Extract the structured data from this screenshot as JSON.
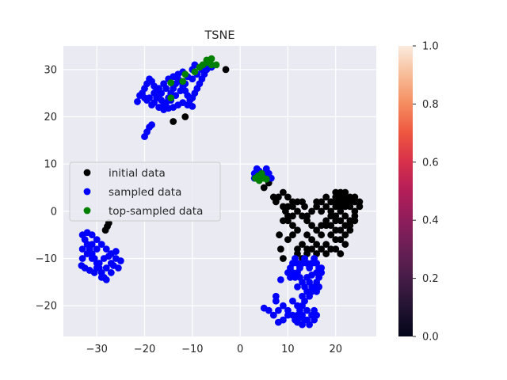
{
  "chart_data": {
    "type": "scatter",
    "title": "TSNE",
    "xlabel": "",
    "ylabel": "",
    "xlim": [
      -37,
      28.5
    ],
    "ylim": [
      -26.5,
      35
    ],
    "xticks": [
      -30,
      -20,
      -10,
      0,
      10,
      20
    ],
    "yticks": [
      -20,
      -10,
      0,
      10,
      20,
      30
    ],
    "xtick_labels": [
      "−30",
      "−20",
      "−10",
      "0",
      "10",
      "20"
    ],
    "ytick_labels": [
      "−20",
      "−10",
      "0",
      "10",
      "20",
      "30"
    ],
    "grid": true,
    "legend_position": "center-left",
    "series": [
      {
        "name": "initial data",
        "color": "#000000",
        "points": [
          [
            -3,
            30
          ],
          [
            -14,
            19
          ],
          [
            -11.5,
            20
          ],
          [
            -27.5,
            -2.5
          ],
          [
            -27.8,
            -3.2
          ],
          [
            -28.2,
            -4
          ],
          [
            5,
            5
          ],
          [
            6,
            6
          ],
          [
            7,
            3
          ],
          [
            7.5,
            2
          ],
          [
            9,
            1
          ],
          [
            9.5,
            0
          ],
          [
            10,
            -1
          ],
          [
            9,
            -2
          ],
          [
            8.2,
            -5
          ],
          [
            8.5,
            -8
          ],
          [
            9,
            -10
          ],
          [
            10,
            -2
          ],
          [
            11,
            -3
          ],
          [
            12,
            -4
          ],
          [
            13,
            -1
          ],
          [
            13.5,
            1
          ],
          [
            12,
            2
          ],
          [
            11,
            1
          ],
          [
            14,
            -2
          ],
          [
            15,
            0
          ],
          [
            16,
            1
          ],
          [
            17,
            0
          ],
          [
            18,
            -2
          ],
          [
            19,
            -3
          ],
          [
            20,
            -1
          ],
          [
            21,
            0
          ],
          [
            22,
            1
          ],
          [
            23,
            2
          ],
          [
            24,
            3
          ],
          [
            25,
            1
          ],
          [
            24,
            -1
          ],
          [
            23,
            -3
          ],
          [
            22,
            -5
          ],
          [
            21,
            -4
          ],
          [
            20,
            -6
          ],
          [
            19,
            -5
          ],
          [
            18,
            -7
          ],
          [
            21,
            -9
          ],
          [
            17,
            -5
          ],
          [
            16,
            -7
          ],
          [
            15,
            -6
          ],
          [
            14,
            -5
          ],
          [
            13,
            -7
          ],
          [
            12,
            -9
          ],
          [
            12,
            -8
          ],
          [
            10,
            -6
          ],
          [
            11,
            -5
          ],
          [
            19,
            2
          ],
          [
            20,
            3
          ],
          [
            21,
            4
          ],
          [
            22,
            3
          ],
          [
            23,
            1
          ],
          [
            24,
            0
          ],
          [
            20,
            2
          ],
          [
            21,
            2
          ],
          [
            22,
            2
          ],
          [
            19,
            0
          ],
          [
            18,
            1
          ],
          [
            20,
            -2
          ],
          [
            21,
            -2
          ],
          [
            22,
            -1
          ],
          [
            23,
            -2
          ],
          [
            24,
            -2
          ],
          [
            22,
            -3
          ],
          [
            21,
            -6
          ],
          [
            20,
            -4
          ],
          [
            23,
            -4
          ],
          [
            22,
            -7
          ],
          [
            16,
            -9
          ],
          [
            17,
            -8
          ],
          [
            18,
            -3
          ],
          [
            15,
            -3
          ],
          [
            14,
            -1
          ],
          [
            13,
            2
          ],
          [
            16,
            2
          ],
          [
            17,
            2
          ],
          [
            18,
            3
          ],
          [
            12,
            0
          ],
          [
            11,
            -1
          ],
          [
            10,
            1
          ],
          [
            8,
            3
          ],
          [
            9,
            4
          ],
          [
            10,
            3
          ],
          [
            11,
            2
          ],
          [
            15,
            -8
          ],
          [
            14,
            -8
          ],
          [
            16,
            -4
          ],
          [
            17,
            -3
          ],
          [
            19,
            -1
          ],
          [
            20,
            1
          ],
          [
            21,
            1
          ],
          [
            25,
            2
          ],
          [
            22,
            4
          ],
          [
            23,
            3
          ],
          [
            24,
            2
          ],
          [
            20,
            4
          ],
          [
            21,
            3
          ],
          [
            19,
            -8
          ],
          [
            20,
            -8
          ],
          [
            18,
            -9
          ],
          [
            13,
            -10
          ],
          [
            14,
            -9
          ]
        ]
      },
      {
        "name": "sampled data",
        "color": "#0000ff",
        "points": [
          [
            -20,
            15.8
          ],
          [
            -19.5,
            16.8
          ],
          [
            -19,
            17.8
          ],
          [
            -18.5,
            18.3
          ],
          [
            -21.5,
            23.2
          ],
          [
            -21,
            24.5
          ],
          [
            -20.5,
            25
          ],
          [
            -20,
            26
          ],
          [
            -19.5,
            27
          ],
          [
            -19,
            28
          ],
          [
            -18.5,
            27.5
          ],
          [
            -18,
            26.5
          ],
          [
            -17.5,
            25.5
          ],
          [
            -17,
            24.5
          ],
          [
            -16.5,
            23.5
          ],
          [
            -16,
            22.5
          ],
          [
            -15.5,
            23
          ],
          [
            -15,
            24
          ],
          [
            -14.5,
            25
          ],
          [
            -14,
            26
          ],
          [
            -13.5,
            27
          ],
          [
            -13,
            28
          ],
          [
            -12.5,
            27.5
          ],
          [
            -12,
            26.5
          ],
          [
            -11.5,
            25.5
          ],
          [
            -11,
            24.5
          ],
          [
            -10.5,
            23.5
          ],
          [
            -10,
            24
          ],
          [
            -9.5,
            25
          ],
          [
            -9,
            26
          ],
          [
            -8.5,
            27
          ],
          [
            -8,
            28
          ],
          [
            -7.5,
            29
          ],
          [
            -7,
            30
          ],
          [
            -6.5,
            31
          ],
          [
            -6,
            30.5
          ],
          [
            -18,
            23
          ],
          [
            -17,
            22
          ],
          [
            -16,
            21.5
          ],
          [
            -15,
            21.8
          ],
          [
            -14,
            22
          ],
          [
            -13,
            22.5
          ],
          [
            -12,
            23
          ],
          [
            -11,
            22.5
          ],
          [
            -10,
            22.2
          ],
          [
            -19,
            24
          ],
          [
            -18,
            25
          ],
          [
            -17,
            26
          ],
          [
            -16,
            27
          ],
          [
            -15,
            28
          ],
          [
            -14,
            28.5
          ],
          [
            -13,
            29
          ],
          [
            -12,
            29.5
          ],
          [
            -11,
            28.5
          ],
          [
            -10,
            28
          ],
          [
            -9,
            29
          ],
          [
            -8,
            30
          ],
          [
            -9.5,
            31
          ],
          [
            -10,
            30
          ],
          [
            -11.5,
            27
          ],
          [
            -12.5,
            25.5
          ],
          [
            -13.5,
            24.5
          ],
          [
            -14.5,
            23.5
          ],
          [
            -15.5,
            26
          ],
          [
            -16.5,
            25
          ],
          [
            -17.5,
            24
          ],
          [
            -18.5,
            22.5
          ],
          [
            -19.5,
            23.5
          ],
          [
            -20,
            24
          ],
          [
            -33,
            -5
          ],
          [
            -32.5,
            -6
          ],
          [
            -32,
            -7
          ],
          [
            -31.5,
            -8
          ],
          [
            -31,
            -9
          ],
          [
            -30.5,
            -10
          ],
          [
            -30,
            -11
          ],
          [
            -29.5,
            -12
          ],
          [
            -29,
            -13
          ],
          [
            -28.5,
            -14
          ],
          [
            -28,
            -14.5
          ],
          [
            -33,
            -8
          ],
          [
            -32,
            -9
          ],
          [
            -31,
            -10
          ],
          [
            -30,
            -12
          ],
          [
            -29,
            -14
          ],
          [
            -28,
            -12
          ],
          [
            -27,
            -11
          ],
          [
            -26,
            -10
          ],
          [
            -25,
            -10.5
          ],
          [
            -26,
            -8.5
          ],
          [
            -27,
            -9
          ],
          [
            -28,
            -8
          ],
          [
            -29,
            -7
          ],
          [
            -30,
            -6
          ],
          [
            -31,
            -5
          ],
          [
            -32,
            -4.5
          ],
          [
            -33,
            -10
          ],
          [
            -33.2,
            -11.5
          ],
          [
            -32.5,
            -12
          ],
          [
            -31.5,
            -12.5
          ],
          [
            -30.5,
            -13
          ],
          [
            -29.5,
            -11
          ],
          [
            -28.5,
            -10
          ],
          [
            -27.5,
            -9.5
          ],
          [
            -26.5,
            -11.5
          ],
          [
            -25.5,
            -12
          ],
          [
            -27,
            -13
          ],
          [
            -30,
            -8
          ],
          [
            -31,
            -7
          ],
          [
            3,
            8
          ],
          [
            3.5,
            9
          ],
          [
            4,
            8.5
          ],
          [
            4.5,
            7.5
          ],
          [
            5,
            8
          ],
          [
            5.5,
            9
          ],
          [
            6,
            8
          ],
          [
            6.5,
            7
          ],
          [
            3,
            7
          ],
          [
            4,
            7
          ],
          [
            8.5,
            -14.5
          ],
          [
            10,
            -13
          ],
          [
            10.5,
            -12
          ],
          [
            11,
            -11
          ],
          [
            11.5,
            -10
          ],
          [
            12,
            -11
          ],
          [
            12.5,
            -12
          ],
          [
            13,
            -11
          ],
          [
            13.5,
            -10
          ],
          [
            14,
            -11
          ],
          [
            14.5,
            -12
          ],
          [
            15,
            -11
          ],
          [
            15.5,
            -10
          ],
          [
            16,
            -11
          ],
          [
            16.5,
            -12
          ],
          [
            17,
            -13
          ],
          [
            16.5,
            -14
          ],
          [
            16,
            -15
          ],
          [
            15.5,
            -16
          ],
          [
            15,
            -17
          ],
          [
            14.5,
            -18
          ],
          [
            14,
            -17
          ],
          [
            13.5,
            -16
          ],
          [
            13,
            -15
          ],
          [
            12.5,
            -14
          ],
          [
            12,
            -13
          ],
          [
            11.5,
            -14
          ],
          [
            11,
            -13
          ],
          [
            10.5,
            -14
          ],
          [
            12,
            -16
          ],
          [
            13,
            -18
          ],
          [
            13,
            -20
          ],
          [
            12.5,
            -21
          ],
          [
            12,
            -22
          ],
          [
            11.5,
            -23
          ],
          [
            12,
            -23.5
          ],
          [
            13,
            -24
          ],
          [
            14,
            -23
          ],
          [
            15,
            -22
          ],
          [
            15.5,
            -21
          ],
          [
            16,
            -22
          ],
          [
            15.5,
            -23
          ],
          [
            14.5,
            -24
          ],
          [
            13.5,
            -23
          ],
          [
            12.5,
            -22.5
          ],
          [
            11,
            -22
          ],
          [
            10,
            -21
          ],
          [
            9,
            -20
          ],
          [
            8,
            -21
          ],
          [
            7,
            -22
          ],
          [
            6,
            -21
          ],
          [
            5,
            -20.5
          ],
          [
            7.5,
            -19
          ],
          [
            7.5,
            -18
          ],
          [
            14,
            -14
          ],
          [
            15,
            -13.5
          ],
          [
            16,
            -13
          ],
          [
            17,
            -12
          ],
          [
            14.5,
            -15
          ],
          [
            15,
            -16
          ],
          [
            13.5,
            -19
          ],
          [
            14,
            -21
          ],
          [
            13,
            -22
          ],
          [
            12,
            -20
          ],
          [
            11,
            -19
          ],
          [
            10,
            -22
          ],
          [
            9,
            -23
          ],
          [
            8,
            -23.5
          ],
          [
            16.5,
            -16
          ],
          [
            16,
            -17
          ]
        ]
      },
      {
        "name": "top-sampled data",
        "color": "#008000",
        "points": [
          [
            -14.5,
            24
          ],
          [
            -14.5,
            27.2
          ],
          [
            -12,
            27.5
          ],
          [
            -11.5,
            29
          ],
          [
            -9.5,
            29.5
          ],
          [
            -8.5,
            30.5
          ],
          [
            -7.8,
            31
          ],
          [
            -7,
            32
          ],
          [
            -6.5,
            31.5
          ],
          [
            -6,
            32.3
          ],
          [
            -5,
            31
          ],
          [
            -6,
            31
          ],
          [
            -7,
            31.5
          ],
          [
            3.2,
            7
          ],
          [
            3.8,
            7.5
          ],
          [
            4.5,
            8
          ],
          [
            5,
            7
          ],
          [
            5.5,
            6.8
          ],
          [
            4,
            6.5
          ]
        ]
      }
    ]
  },
  "colorbar": {
    "ticks": [
      "0.0",
      "0.2",
      "0.4",
      "0.6",
      "0.8",
      "1.0"
    ],
    "range": [
      0,
      1
    ],
    "colormap": "rocket"
  }
}
